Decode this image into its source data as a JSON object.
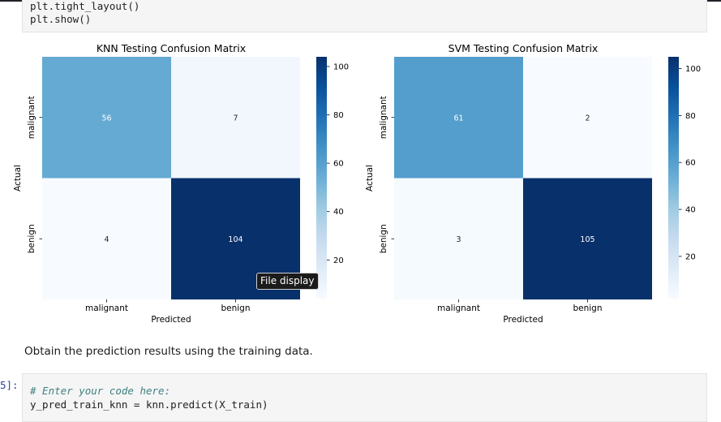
{
  "top_code_cell": {
    "lines": [
      "plt.tight_layout()",
      "plt.show()"
    ]
  },
  "charts": {
    "cbar_ticks": [
      "100",
      "80",
      "60",
      "40",
      "20"
    ]
  },
  "chart_data": [
    {
      "type": "heatmap",
      "title": "KNN Testing Confusion Matrix",
      "xlabel": "Predicted",
      "ylabel": "Actual",
      "x_tick_labels": [
        "malignant",
        "benign"
      ],
      "y_tick_labels": [
        "malignant",
        "benign"
      ],
      "values": [
        [
          56,
          7
        ],
        [
          4,
          104
        ]
      ],
      "colormap": "Blues",
      "colorbar_range": [
        4,
        104
      ],
      "colorbar_ticks": [
        20,
        40,
        60,
        80,
        100
      ]
    },
    {
      "type": "heatmap",
      "title": "SVM Testing Confusion Matrix",
      "xlabel": "Predicted",
      "ylabel": "Actual",
      "x_tick_labels": [
        "malignant",
        "benign"
      ],
      "y_tick_labels": [
        "malignant",
        "benign"
      ],
      "values": [
        [
          61,
          2
        ],
        [
          3,
          105
        ]
      ],
      "colormap": "Blues",
      "colorbar_range": [
        2,
        105
      ],
      "colorbar_ticks": [
        20,
        40,
        60,
        80,
        100
      ]
    }
  ],
  "tooltip": {
    "text": "File display"
  },
  "markdown": {
    "text": "Obtain the prediction results using the training data."
  },
  "bottom_code_cell": {
    "prompt": "5]:",
    "comment": "# Enter your code here:",
    "code": "y_pred_train_knn = knn.predict(X_train)"
  }
}
